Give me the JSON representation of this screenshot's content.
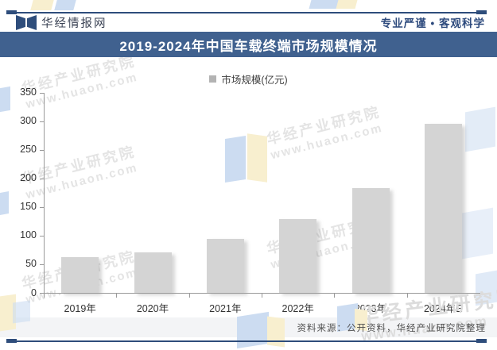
{
  "header": {
    "brand": "华经情报网",
    "slogan": "专业严谨 • 客观科学"
  },
  "banner": {
    "title": "2019-2024年中国车载终端市场规模情况"
  },
  "chart_data": {
    "type": "bar",
    "title": "2019-2024年中国车载终端市场规模情况",
    "legend": [
      "市场规模(亿元)"
    ],
    "legend_position": "top-center",
    "categories": [
      "2019年",
      "2020年",
      "2021年",
      "2022年",
      "2023年",
      "2024年E"
    ],
    "values": [
      63,
      72,
      95,
      129,
      183,
      296
    ],
    "xlabel": "",
    "ylabel": "",
    "ylim": [
      0,
      350
    ],
    "yticks": [
      0,
      50,
      100,
      150,
      200,
      250,
      300,
      350
    ],
    "grid": false,
    "bar_color": "#d4d4d4"
  },
  "footer": {
    "source": "资料来源：公开资料，华经产业研究院整理"
  },
  "watermark": {
    "line1": "华经产业研究院",
    "line2": "www.huaon.com"
  },
  "colors": {
    "banner_bg": "#40618f",
    "rule": "#2e4d7b",
    "slogan_text": "#2d4a7d",
    "bar": "#d4d4d4",
    "axis": "#9a9a9a",
    "tick_text": "#333333",
    "footer_bg": "#f3f4f6",
    "watermark_text": "#e4e4e4",
    "shape_blue": "#ccdcf1",
    "shape_yellow": "#f8efcf"
  }
}
